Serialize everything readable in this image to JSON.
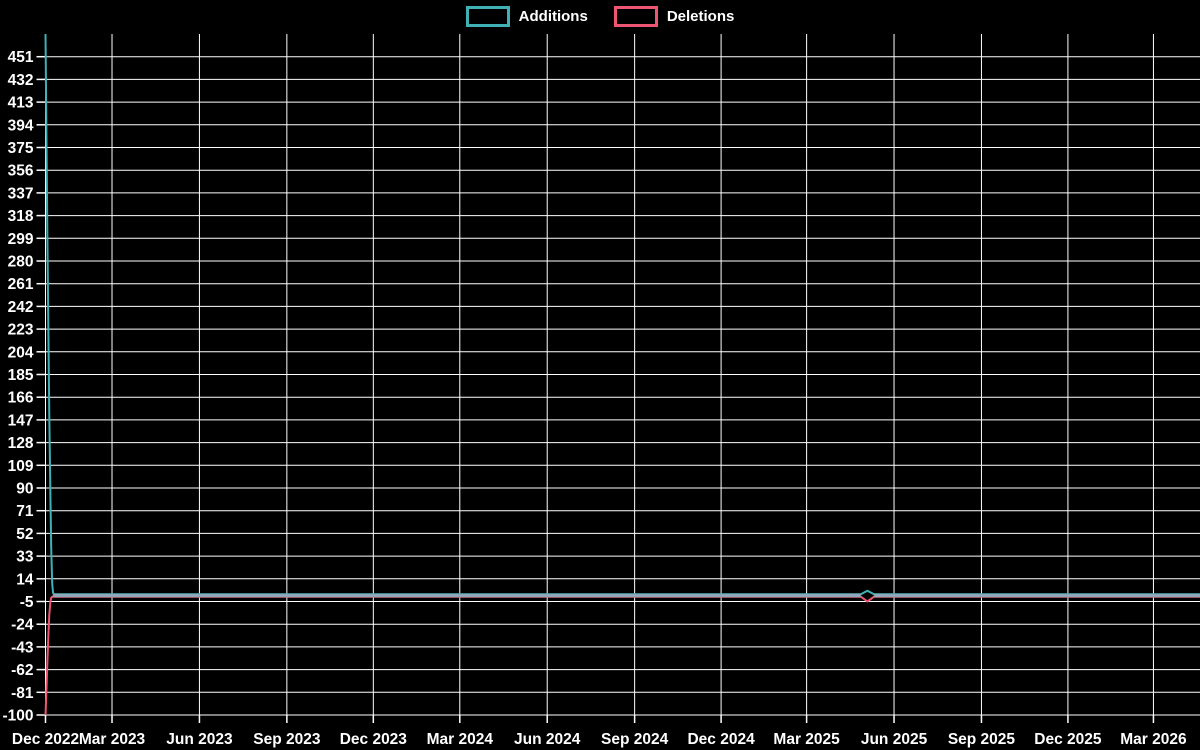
{
  "legend": {
    "items": [
      {
        "label": "Additions",
        "color": "#3fb1b5"
      },
      {
        "label": "Deletions",
        "color": "#ee5573"
      }
    ]
  },
  "chart_data": {
    "type": "line",
    "title": "",
    "background_color": "#000000",
    "grid_on": true,
    "grid_color": "#ffffff",
    "text_color": "#ffffff",
    "overlap_line_color": "#8fa9ba",
    "legend_position": "top-center",
    "x_axis": {
      "start_date": "2022-12-21",
      "end_date": "2026-04-19",
      "ticks": [
        {
          "label": "Dec 2022",
          "date": "2022-12-21"
        },
        {
          "label": "Mar 2023",
          "date": "2023-03-01"
        },
        {
          "label": "Jun 2023",
          "date": "2023-06-01"
        },
        {
          "label": "Sep 2023",
          "date": "2023-09-01"
        },
        {
          "label": "Dec 2023",
          "date": "2023-12-01"
        },
        {
          "label": "Mar 2024",
          "date": "2024-03-01"
        },
        {
          "label": "Jun 2024",
          "date": "2024-06-01"
        },
        {
          "label": "Sep 2024",
          "date": "2024-09-01"
        },
        {
          "label": "Dec 2024",
          "date": "2024-12-01"
        },
        {
          "label": "Mar 2025",
          "date": "2025-03-01"
        },
        {
          "label": "Jun 2025",
          "date": "2025-06-01"
        },
        {
          "label": "Sep 2025",
          "date": "2025-09-01"
        },
        {
          "label": "Dec 2025",
          "date": "2025-12-01"
        },
        {
          "label": "Mar 2026",
          "date": "2026-03-01"
        }
      ]
    },
    "y_axis": {
      "min": -100,
      "max": 470,
      "tick_step": 19,
      "tick_labels": [
        451,
        432,
        413,
        394,
        375,
        356,
        337,
        318,
        299,
        280,
        261,
        242,
        223,
        204,
        185,
        166,
        147,
        128,
        109,
        90,
        71,
        52,
        33,
        14,
        -5,
        -24,
        -43,
        -62,
        -81,
        -100
      ]
    },
    "dates": [
      "2022-12-21",
      "2022-12-22",
      "2022-12-23",
      "2022-12-24",
      "2022-12-25",
      "2022-12-26",
      "2022-12-27",
      "2022-12-28",
      "2022-12-29",
      "2022-12-30",
      "2023-03-01",
      "2023-06-01",
      "2023-09-01",
      "2023-12-01",
      "2024-03-01",
      "2024-06-01",
      "2024-09-01",
      "2024-12-01",
      "2025-03-01",
      "2025-04-27",
      "2025-05-04",
      "2025-05-11",
      "2025-06-01",
      "2025-09-01",
      "2025-12-01",
      "2026-03-01",
      "2026-04-19"
    ],
    "series": [
      {
        "name": "Additions",
        "color": "#3fb1b5",
        "values": [
          470,
          380,
          299,
          220,
          150,
          90,
          40,
          10,
          2,
          1,
          1,
          1,
          1,
          1,
          1,
          1,
          1,
          1,
          1,
          1,
          4,
          1,
          1,
          1,
          1,
          1,
          1
        ]
      },
      {
        "name": "Deletions",
        "color": "#ee5573",
        "values": [
          -100,
          -78,
          -55,
          -33,
          -16,
          -6,
          -2,
          -1,
          -1,
          -1,
          -1,
          -1,
          -1,
          -1,
          -1,
          -1,
          -1,
          -1,
          -1,
          -1,
          -5,
          -1,
          -1,
          -1,
          -1,
          -1,
          -1
        ]
      }
    ]
  }
}
